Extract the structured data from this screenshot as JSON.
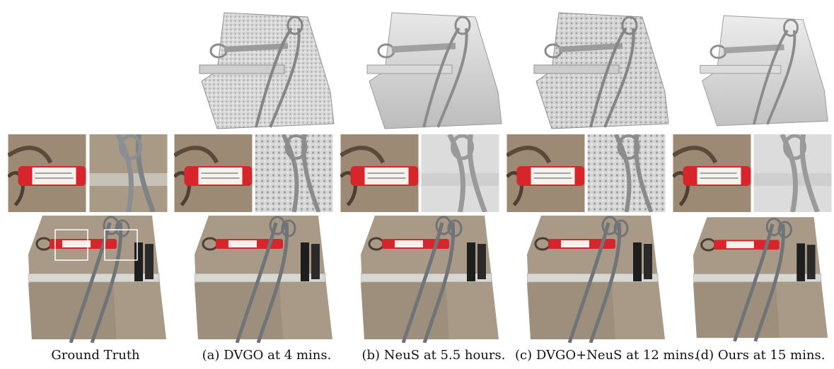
{
  "figure": {
    "columns": [
      {
        "id": "gt",
        "caption": "Ground Truth"
      },
      {
        "id": "dvgo",
        "caption": "(a) DVGO at 4 mins."
      },
      {
        "id": "neus",
        "caption": "(b) NeuS at 5.5 hours."
      },
      {
        "id": "dvgoneus",
        "caption": "(c) DVGO+NeuS at 12 mins."
      },
      {
        "id": "ours",
        "caption": "(d) Ours at 15 mins."
      }
    ],
    "colors": {
      "brick": "#a89a86",
      "brick_dark": "#8d7f6c",
      "mesh_light": "#e4e4e4",
      "mesh_mid": "#bdbdbd",
      "mesh_dark": "#7d7d7d",
      "label_red": "#d8242b",
      "label_white": "#f4f2ec",
      "metal": "#8a8f93",
      "clamp_black": "#1e1e1e",
      "zoom_box": "#ffffff"
    }
  }
}
